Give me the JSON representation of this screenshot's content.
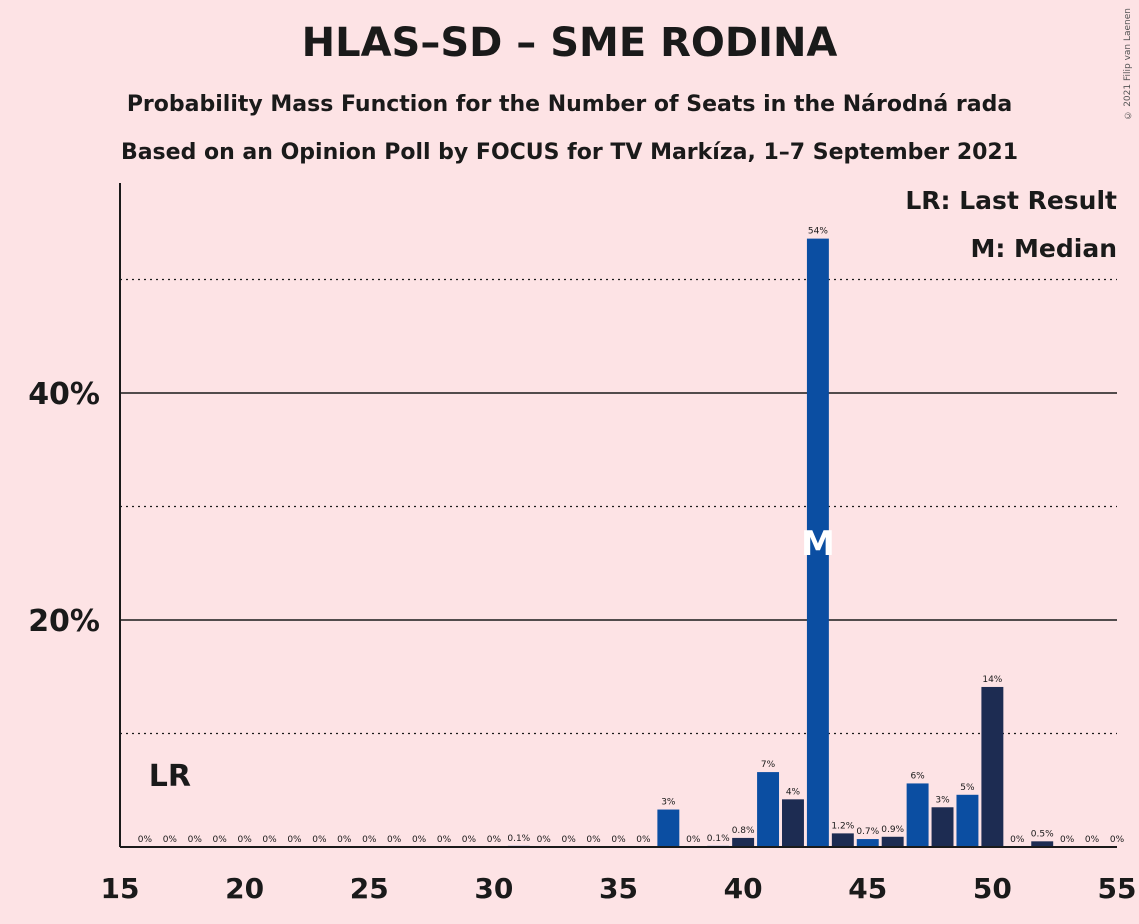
{
  "title": "HLAS–SD – SME RODINA",
  "subtitle1": "Probability Mass Function for the Number of Seats in the Národná rada",
  "subtitle2": "Based on an Opinion Poll by FOCUS for TV Markíza, 1–7 September 2021",
  "copyright": "© 2021 Filip van Laenen",
  "legend": {
    "last_result": "LR: Last Result",
    "median": "M: Median"
  },
  "chart_data": {
    "type": "bar",
    "x": [
      16,
      17,
      18,
      19,
      20,
      21,
      22,
      23,
      24,
      25,
      26,
      27,
      28,
      29,
      30,
      31,
      32,
      33,
      34,
      35,
      36,
      37,
      38,
      39,
      40,
      41,
      42,
      43,
      44,
      45,
      46,
      47,
      48,
      49,
      50,
      51,
      52,
      53,
      54,
      55
    ],
    "values": [
      0,
      0,
      0,
      0,
      0,
      0,
      0,
      0,
      0,
      0,
      0,
      0,
      0,
      0,
      0,
      0.1,
      0,
      0,
      0,
      0,
      0,
      3.3,
      0,
      0.1,
      0.8,
      6.6,
      4.2,
      53.6,
      1.2,
      0.7,
      0.9,
      5.6,
      3.5,
      4.6,
      14.1,
      0,
      0.5,
      0,
      0,
      0
    ],
    "labels": [
      "0%",
      "0%",
      "0%",
      "0%",
      "0%",
      "0%",
      "0%",
      "0%",
      "0%",
      "0%",
      "0%",
      "0%",
      "0%",
      "0%",
      "0%",
      "0.1%",
      "0%",
      "0%",
      "0%",
      "0%",
      "0%",
      "3%",
      "0%",
      "0.1%",
      "0.8%",
      "7%",
      "4%",
      "54%",
      "1.2%",
      "0.7%",
      "0.9%",
      "6%",
      "3%",
      "5%",
      "14%",
      "0%",
      "0.5%",
      "0%",
      "0%",
      "0%"
    ],
    "x_ticks": [
      15,
      20,
      25,
      30,
      35,
      40,
      45,
      50,
      55
    ],
    "x_tick_labels": [
      "15",
      "20",
      "25",
      "30",
      "35",
      "40",
      "45",
      "50",
      "55"
    ],
    "y_ticks_major": [
      20,
      40
    ],
    "y_tick_labels": [
      "20%",
      "40%"
    ],
    "y_ticks_minor": [
      10,
      30,
      50
    ],
    "xlim": [
      15,
      55
    ],
    "ylim": [
      0,
      58.5
    ],
    "last_result_seat": 17,
    "last_result_label": "LR",
    "median_seat": 43,
    "median_label": "M",
    "colors": {
      "light_bar": "#0b4ea2",
      "dark_bar": "#1d2c52",
      "background": "#fde3e5"
    }
  }
}
